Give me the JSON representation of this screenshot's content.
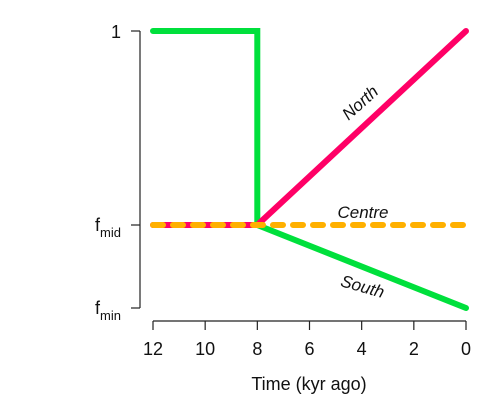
{
  "chart_data": {
    "type": "line",
    "title": "",
    "xlabel": "Time (kyr ago)",
    "ylabel": "",
    "xlim": [
      12,
      0
    ],
    "x_ticks": [
      12,
      10,
      8,
      6,
      4,
      2,
      0
    ],
    "y_ticks": [
      {
        "label": "1",
        "level": "one"
      },
      {
        "label": "f",
        "sub": "mid",
        "level": "mid"
      },
      {
        "label": "f",
        "sub": "min",
        "level": "min"
      }
    ],
    "series": [
      {
        "name": "North",
        "color": "#FF0066",
        "style": "solid",
        "points": [
          [
            12,
            "mid"
          ],
          [
            8,
            "mid"
          ],
          [
            0,
            "one"
          ]
        ]
      },
      {
        "name": "Centre",
        "color": "#FFB000",
        "style": "dashed",
        "points": [
          [
            12,
            "mid"
          ],
          [
            0,
            "mid"
          ]
        ]
      },
      {
        "name": "South",
        "color": "#00E03C",
        "style": "solid",
        "points": [
          [
            12,
            "one"
          ],
          [
            8,
            "one"
          ],
          [
            8,
            "mid"
          ],
          [
            0,
            "min"
          ]
        ]
      }
    ]
  }
}
